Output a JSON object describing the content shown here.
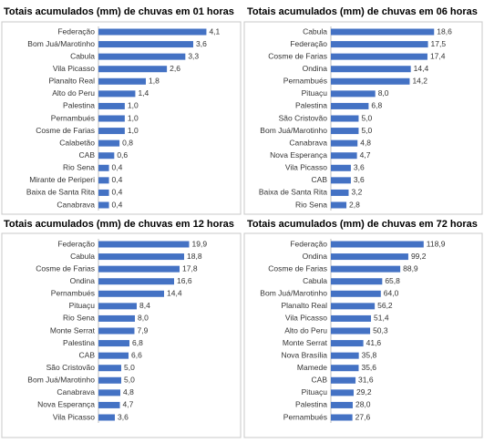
{
  "chart_data": [
    {
      "type": "bar",
      "orientation": "horizontal",
      "title": "Totais acumulados (mm) de chuvas em 01 horas",
      "color": "#4472c4",
      "xlim": [
        0,
        4.5
      ],
      "categories": [
        "Federação",
        "Bom Juá/Marotinho",
        "Cabula",
        "Vila Picasso",
        "Planalto Real",
        "Alto do Peru",
        "Palestina",
        "Pernambués",
        "Cosme de Farias",
        "Calabetão",
        "CAB",
        "Rio Sena",
        "Mirante de Periperi",
        "Baixa de Santa Rita",
        "Canabrava"
      ],
      "values": [
        4.1,
        3.6,
        3.3,
        2.6,
        1.8,
        1.4,
        1.0,
        1.0,
        1.0,
        0.8,
        0.6,
        0.4,
        0.4,
        0.4,
        0.4
      ],
      "value_labels": [
        "4,1",
        "3,6",
        "3,3",
        "2,6",
        "1,8",
        "1,4",
        "1,0",
        "1,0",
        "1,0",
        "0,8",
        "0,6",
        "0,4",
        "0,4",
        "0,4",
        "0,4"
      ]
    },
    {
      "type": "bar",
      "orientation": "horizontal",
      "title": "Totais acumulados (mm) de chuvas em 06 horas",
      "color": "#4472c4",
      "xlim": [
        0,
        22.5
      ],
      "categories": [
        "Cabula",
        "Federação",
        "Cosme de Farias",
        "Ondina",
        "Pernambués",
        "Pituaçu",
        "Palestina",
        "São Cristovão",
        "Bom Juá/Marotinho",
        "Canabrava",
        "Nova Esperança",
        "Vila Picasso",
        "CAB",
        "Baixa de Santa Rita",
        "Rio Sena"
      ],
      "values": [
        18.6,
        17.5,
        17.4,
        14.4,
        14.2,
        8.0,
        6.8,
        5.0,
        5.0,
        4.8,
        4.7,
        3.6,
        3.6,
        3.2,
        2.8
      ],
      "value_labels": [
        "18,6",
        "17,5",
        "17,4",
        "14,4",
        "14,2",
        "8,0",
        "6,8",
        "5,0",
        "5,0",
        "4,8",
        "4,7",
        "3,6",
        "3,6",
        "3,2",
        "2,8"
      ]
    },
    {
      "type": "bar",
      "orientation": "horizontal",
      "title": "Totais acumulados (mm) de chuvas em 12 horas",
      "color": "#4472c4",
      "xlim": [
        0,
        26
      ],
      "categories": [
        "Federação",
        "Cabula",
        "Cosme de Farias",
        "Ondina",
        "Pernambués",
        "Pituaçu",
        "Rio Sena",
        "Monte Serrat",
        "Palestina",
        "CAB",
        "São Cristovão",
        "Bom Juá/Marotinho",
        "Canabrava",
        "Nova Esperança",
        "Vila Picasso"
      ],
      "values": [
        19.9,
        18.8,
        17.8,
        16.6,
        14.4,
        8.4,
        8.0,
        7.9,
        6.8,
        6.6,
        5.0,
        5.0,
        4.8,
        4.7,
        3.6
      ],
      "value_labels": [
        "19,9",
        "18,8",
        "17,8",
        "16,6",
        "14,4",
        "8,4",
        "8,0",
        "7,9",
        "6,8",
        "6,6",
        "5,0",
        "5,0",
        "4,8",
        "4,7",
        "3,6"
      ]
    },
    {
      "type": "bar",
      "orientation": "horizontal",
      "title": "Totais acumulados (mm) de chuvas em 72 horas",
      "color": "#4472c4",
      "xlim": [
        0,
        160
      ],
      "categories": [
        "Federação",
        "Ondina",
        "Cosme de Farias",
        "Cabula",
        "Bom Juá/Marotinho",
        "Planalto Real",
        "Vila Picasso",
        "Alto do Peru",
        "Monte Serrat",
        "Nova Brasília",
        "Mamede",
        "CAB",
        "Pituaçu",
        "Palestina",
        "Pernambués"
      ],
      "values": [
        118.9,
        99.2,
        88.9,
        65.8,
        64.0,
        56.2,
        51.4,
        50.3,
        41.6,
        35.8,
        35.6,
        31.6,
        29.2,
        28.0,
        27.6
      ],
      "value_labels": [
        "118,9",
        "99,2",
        "88,9",
        "65,8",
        "64,0",
        "56,2",
        "51,4",
        "50,3",
        "41,6",
        "35,8",
        "35,6",
        "31,6",
        "29,2",
        "28,0",
        "27,6"
      ]
    }
  ]
}
